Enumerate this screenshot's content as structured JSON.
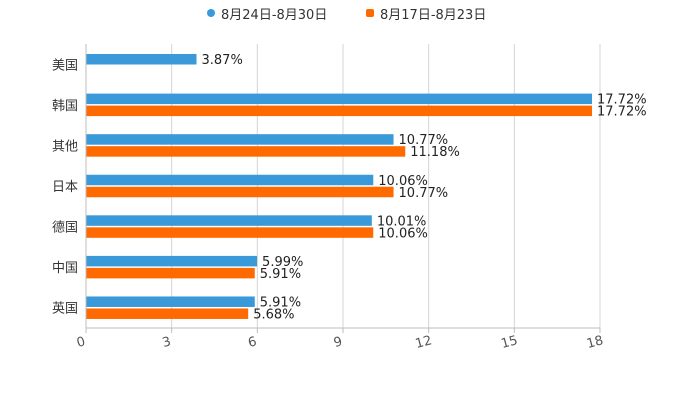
{
  "chart_data": {
    "type": "bar",
    "orientation": "horizontal",
    "categories": [
      "美国",
      "韩国",
      "其他",
      "日本",
      "德国",
      "中国",
      "英国"
    ],
    "series": [
      {
        "name": "8月24日-8月30日",
        "color": "#3a9ad9",
        "values": [
          3.87,
          17.72,
          10.77,
          10.06,
          10.01,
          5.99,
          5.91
        ],
        "labels": [
          "3.87%",
          "17.72%",
          "10.77%",
          "10.06%",
          "10.01%",
          "5.99%",
          "5.91%"
        ]
      },
      {
        "name": "8月17日-8月23日",
        "color": "#ff6a00",
        "values": [
          null,
          17.72,
          11.18,
          10.77,
          10.06,
          5.91,
          5.68
        ],
        "labels": [
          "",
          "17.72%",
          "11.18%",
          "10.77%",
          "10.06%",
          "5.91%",
          "5.68%"
        ]
      }
    ],
    "x_ticks": [
      "0",
      "3",
      "6",
      "9",
      "12",
      "15",
      "18"
    ],
    "xlim": [
      0,
      18
    ],
    "grid": true,
    "legend": "top-center",
    "title": "",
    "xlabel": "",
    "ylabel": ""
  }
}
